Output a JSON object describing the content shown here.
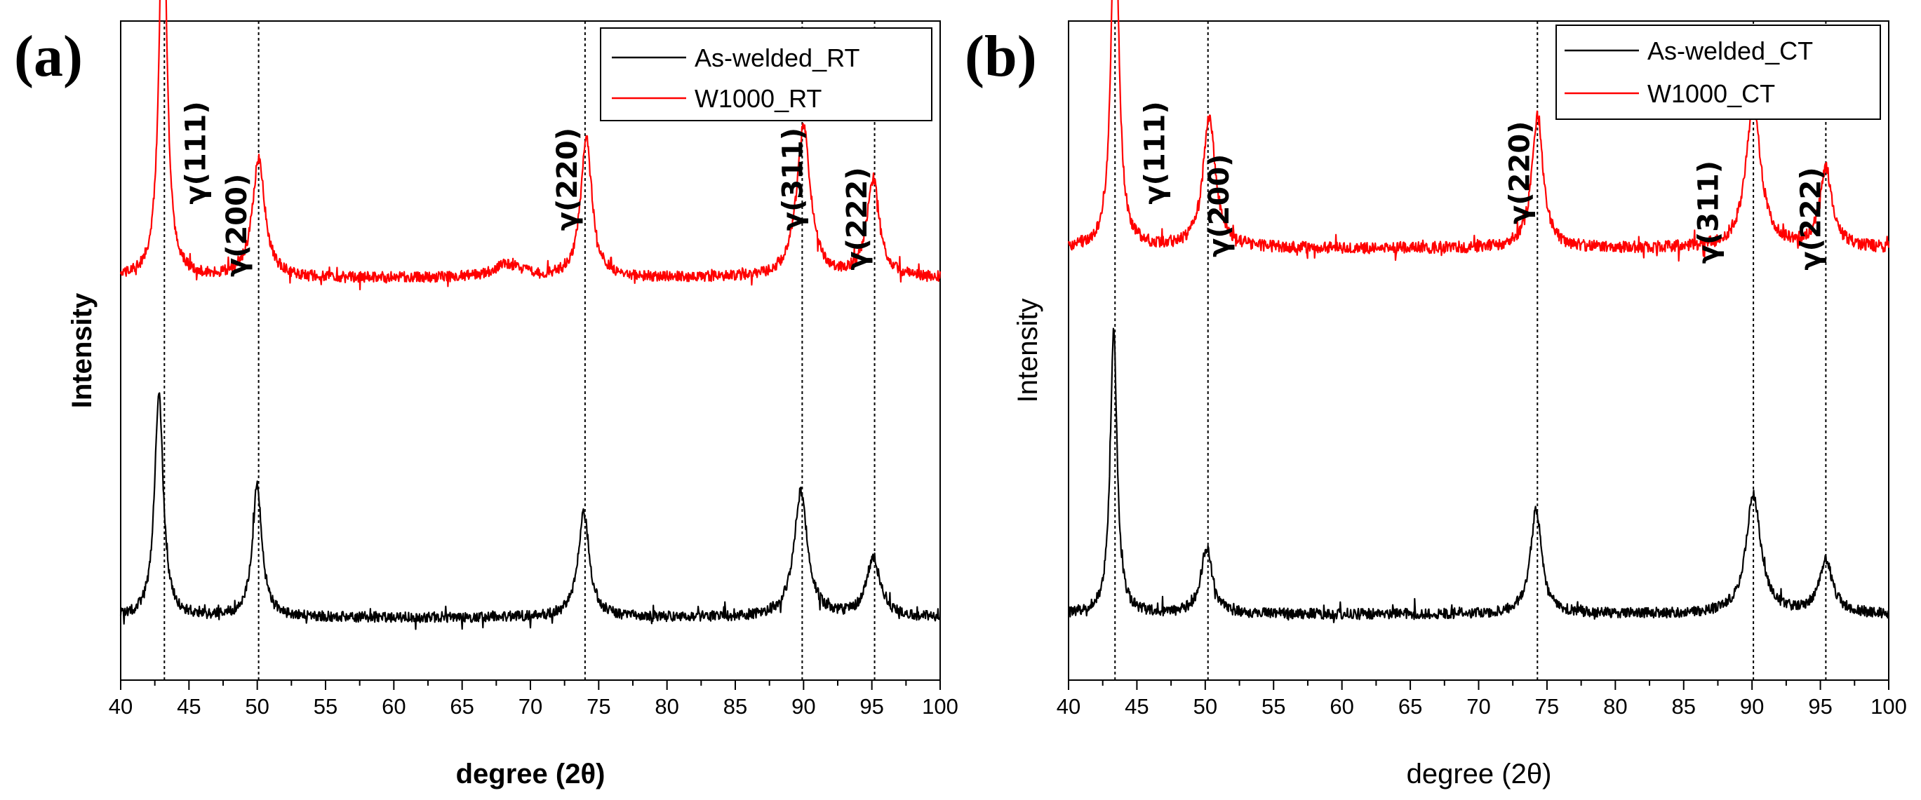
{
  "chart_data": [
    {
      "panel_label": "(a)",
      "type": "line",
      "xlabel": "degree (2θ)",
      "ylabel": "Intensity",
      "xlim": [
        40,
        100
      ],
      "xticks": [
        40,
        45,
        50,
        55,
        60,
        65,
        70,
        75,
        80,
        85,
        90,
        95,
        100
      ],
      "ylim": [
        0,
        1
      ],
      "legend_position": "top-right",
      "peak_positions": [
        43.2,
        50.1,
        74.0,
        89.9,
        95.2
      ],
      "peak_labels": [
        {
          "text": "γ(111)",
          "x": 46.2,
          "y": 0.8
        },
        {
          "text": "γ(200)",
          "x": 49.2,
          "y": 0.69
        },
        {
          "text": "γ(220)",
          "x": 73.4,
          "y": 0.76
        },
        {
          "text": "γ(311)",
          "x": 89.9,
          "y": 0.76
        },
        {
          "text": "γ(222)",
          "x": 94.6,
          "y": 0.7
        }
      ],
      "series": [
        {
          "name": "As-welded_RT",
          "color": "#000000",
          "baseline": 0.095,
          "noise": 0.008,
          "peaks": [
            {
              "x": 42.8,
              "h": 0.34,
              "w": 0.38
            },
            {
              "x": 50.0,
              "h": 0.2,
              "w": 0.42
            },
            {
              "x": 73.9,
              "h": 0.16,
              "w": 0.5
            },
            {
              "x": 89.8,
              "h": 0.19,
              "w": 0.6
            },
            {
              "x": 95.1,
              "h": 0.09,
              "w": 0.6
            }
          ]
        },
        {
          "name": "W1000_RT",
          "color": "#ff0000",
          "baseline": 0.61,
          "noise": 0.008,
          "peaks": [
            {
              "x": 43.1,
              "h": 0.62,
              "w": 0.33
            },
            {
              "x": 50.1,
              "h": 0.18,
              "w": 0.55
            },
            {
              "x": 68.3,
              "h": 0.02,
              "w": 1.2
            },
            {
              "x": 74.1,
              "h": 0.21,
              "w": 0.5
            },
            {
              "x": 90.0,
              "h": 0.23,
              "w": 0.6
            },
            {
              "x": 95.1,
              "h": 0.15,
              "w": 0.55
            }
          ]
        }
      ]
    },
    {
      "panel_label": "(b)",
      "type": "line",
      "xlabel": "degree (2θ)",
      "ylabel": "Intensity",
      "xlim": [
        40,
        100
      ],
      "xticks": [
        40,
        45,
        50,
        55,
        60,
        65,
        70,
        75,
        80,
        85,
        90,
        95,
        100
      ],
      "ylim": [
        0,
        1
      ],
      "legend_position": "top-right",
      "peak_positions": [
        43.4,
        50.2,
        74.3,
        90.1,
        95.4
      ],
      "peak_labels": [
        {
          "text": "γ(111)",
          "x": 47.0,
          "y": 0.8
        },
        {
          "text": "γ(200)",
          "x": 51.7,
          "y": 0.72
        },
        {
          "text": "γ(220)",
          "x": 73.7,
          "y": 0.77
        },
        {
          "text": "γ(311)",
          "x": 87.5,
          "y": 0.71
        },
        {
          "text": "γ(222)",
          "x": 95.0,
          "y": 0.7
        }
      ],
      "series": [
        {
          "name": "As-welded_CT",
          "color": "#000000",
          "baseline": 0.1,
          "noise": 0.008,
          "peaks": [
            {
              "x": 43.3,
              "h": 0.43,
              "w": 0.3
            },
            {
              "x": 50.1,
              "h": 0.1,
              "w": 0.5
            },
            {
              "x": 74.2,
              "h": 0.16,
              "w": 0.5
            },
            {
              "x": 90.1,
              "h": 0.18,
              "w": 0.65
            },
            {
              "x": 95.4,
              "h": 0.08,
              "w": 0.6
            }
          ]
        },
        {
          "name": "W1000_CT",
          "color": "#ff0000",
          "baseline": 0.655,
          "noise": 0.009,
          "peaks": [
            {
              "x": 43.4,
              "h": 0.55,
              "w": 0.33
            },
            {
              "x": 50.3,
              "h": 0.2,
              "w": 0.55
            },
            {
              "x": 74.3,
              "h": 0.2,
              "w": 0.5
            },
            {
              "x": 90.1,
              "h": 0.22,
              "w": 0.65
            },
            {
              "x": 95.4,
              "h": 0.12,
              "w": 0.55
            }
          ]
        }
      ]
    }
  ]
}
